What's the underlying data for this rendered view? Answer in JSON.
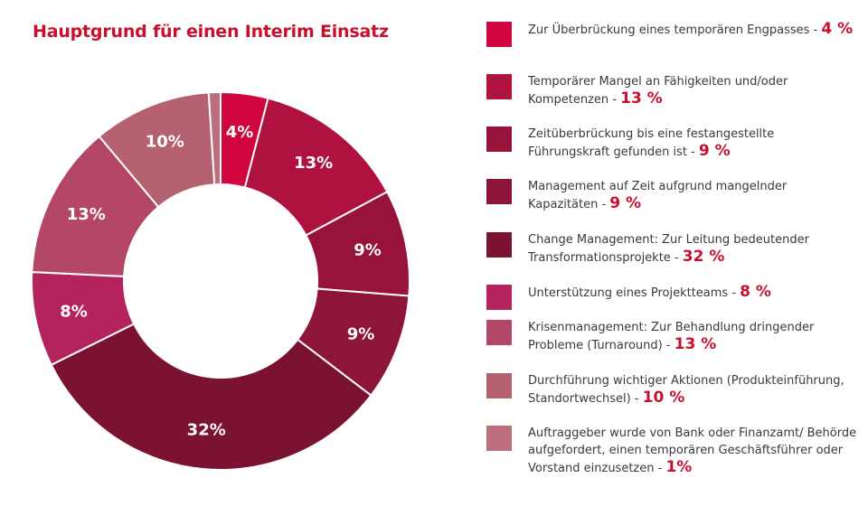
{
  "chart_data": {
    "type": "pie",
    "variant": "donut",
    "title": "Hauptgrund für einen Interim Einsatz",
    "slices": [
      {
        "label": "Zur Überbrückung eines temporären Engpasses",
        "value": 4,
        "value_label": "4%",
        "legend_pct": "4 %",
        "color": "#d1063f"
      },
      {
        "label": "Temporärer Mangel an Fähigkeiten und/oder Kompetenzen",
        "value": 13,
        "value_label": "13%",
        "legend_pct": "13 %",
        "color": "#b0123f"
      },
      {
        "label": "Zeitüberbrückung bis eine festangestellte Führungskraft gefunden ist",
        "value": 9,
        "value_label": "9%",
        "legend_pct": "9 %",
        "color": "#971339"
      },
      {
        "label": "Management auf Zeit aufgrund mangelnder Kapazitäten",
        "value": 9,
        "value_label": "9%",
        "legend_pct": "9 %",
        "color": "#8c1538"
      },
      {
        "label": "Change Management: Zur Leitung bedeutender Transformationsprojekte",
        "value": 32,
        "value_label": "32%",
        "legend_pct": "32 %",
        "color": "#7a1230"
      },
      {
        "label": "Unterstützung eines Projektteams",
        "value": 8,
        "value_label": "8%",
        "legend_pct": "8 %",
        "color": "#b5235c"
      },
      {
        "label": "Krisenmanagement: Zur Behandlung dringender Probleme (Turnaround)",
        "value": 13,
        "value_label": "13%",
        "legend_pct": "13 %",
        "color": "#b54766"
      },
      {
        "label": "Durchführung wichtiger Aktionen (Produkteinführung, Standortwechsel)",
        "value": 10,
        "value_label": "10%",
        "legend_pct": "10 %",
        "color": "#b5616f"
      },
      {
        "label": "Auftraggeber wurde von Bank oder Finanzamt/ Behörde aufgefordert, einen temporären Geschäftsführer oder Vorstand einzusetzen",
        "value": 1,
        "value_label": "",
        "legend_pct": "1%",
        "color": "#bd6e7c"
      }
    ]
  }
}
